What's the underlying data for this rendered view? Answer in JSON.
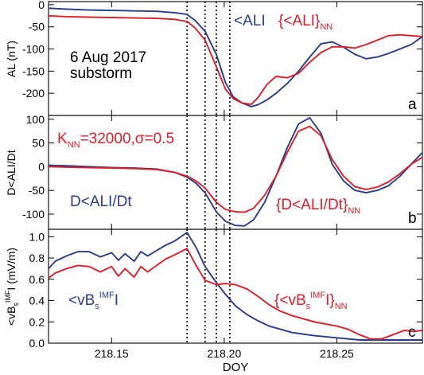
{
  "colors": {
    "observed": "#283c8c",
    "predicted": "#dc1e28",
    "axes": "#000000"
  },
  "xlabel": "DOY",
  "vlines": [
    218.1835,
    218.1915,
    218.1965,
    218.2025
  ],
  "chart_data": [
    {
      "type": "line",
      "panel_label": "a",
      "ylabel": "AL (nT)",
      "xlim": [
        218.122,
        218.288
      ],
      "ylim": [
        -250,
        7
      ],
      "yticks": [
        -200,
        -150,
        -100,
        -50,
        0
      ],
      "xticks": [
        218.15,
        218.2,
        218.25
      ],
      "xticklabels": [
        "",
        "",
        ""
      ],
      "annotations": [
        {
          "text": "6 Aug 2017",
          "color": "#000000"
        },
        {
          "text": "substorm",
          "color": "#000000"
        }
      ],
      "legend": [
        {
          "text": "<ALI",
          "sub": "",
          "tail": "",
          "color": "#283c8c"
        },
        {
          "text": "{<ALI}",
          "sub": "NN",
          "tail": "",
          "color": "#dc1e28"
        }
      ],
      "series": [
        {
          "color": "#283c8c",
          "x": [
            218.122,
            218.13,
            218.14,
            218.15,
            218.16,
            218.17,
            218.178,
            218.1835,
            218.187,
            218.1915,
            218.1965,
            218.2005,
            218.204,
            218.208,
            218.212,
            218.215,
            218.219,
            218.223,
            218.228,
            218.233,
            218.238,
            218.243,
            218.248,
            218.253,
            218.258,
            218.263,
            218.268,
            218.273,
            218.278,
            218.283,
            218.288
          ],
          "y": [
            -8,
            -10,
            -12,
            -13,
            -14,
            -15,
            -18,
            -22,
            -35,
            -60,
            -112,
            -175,
            -208,
            -222,
            -230,
            -226,
            -215,
            -200,
            -178,
            -150,
            -118,
            -88,
            -84,
            -96,
            -112,
            -122,
            -118,
            -110,
            -100,
            -90,
            -72
          ]
        },
        {
          "color": "#dc1e28",
          "x": [
            218.122,
            218.13,
            218.14,
            218.15,
            218.16,
            218.17,
            218.178,
            218.1835,
            218.187,
            218.1915,
            218.1965,
            218.2005,
            218.204,
            218.208,
            218.212,
            218.215,
            218.219,
            218.223,
            218.228,
            218.233,
            218.238,
            218.243,
            218.248,
            218.253,
            218.258,
            218.263,
            218.268,
            218.273,
            218.278,
            218.283,
            218.288
          ],
          "y": [
            -25,
            -27,
            -28,
            -29,
            -30,
            -31,
            -33,
            -38,
            -52,
            -80,
            -140,
            -190,
            -212,
            -222,
            -225,
            -210,
            -180,
            -162,
            -165,
            -155,
            -130,
            -108,
            -95,
            -95,
            -98,
            -90,
            -80,
            -70,
            -68,
            -70,
            -72
          ]
        }
      ]
    },
    {
      "type": "line",
      "panel_label": "b",
      "ylabel": "D<ALI/Dt",
      "xlim": [
        218.122,
        218.288
      ],
      "ylim": [
        -132,
        108
      ],
      "yticks": [
        -100,
        -50,
        0,
        50,
        100
      ],
      "xticks": [
        218.15,
        218.2,
        218.25
      ],
      "xticklabels": [
        "",
        "",
        ""
      ],
      "annotations": [
        {
          "text": "K",
          "sub": "NN",
          "tail": "=32000,σ=0.5",
          "color": "#dc1e28"
        }
      ],
      "legend": [
        {
          "text": "D<ALI/Dt",
          "sub": "",
          "tail": "",
          "color": "#283c8c"
        },
        {
          "text": "{D<ALI/Dt}",
          "sub": "NN",
          "tail": "",
          "color": "#dc1e28"
        }
      ],
      "series": [
        {
          "color": "#283c8c",
          "x": [
            218.122,
            218.13,
            218.14,
            218.15,
            218.16,
            218.17,
            218.178,
            218.1835,
            218.1875,
            218.1915,
            218.1965,
            218.2005,
            218.205,
            218.209,
            218.213,
            218.218,
            218.223,
            218.228,
            218.233,
            218.238,
            218.243,
            218.248,
            218.253,
            218.258,
            218.263,
            218.268,
            218.273,
            218.278,
            218.283,
            218.288
          ],
          "y": [
            3,
            2,
            0,
            -2,
            -3,
            -5,
            -12,
            -22,
            -35,
            -55,
            -95,
            -115,
            -124,
            -125,
            -112,
            -75,
            -20,
            40,
            90,
            103,
            70,
            5,
            -30,
            -50,
            -55,
            -50,
            -40,
            -20,
            5,
            30
          ]
        },
        {
          "color": "#dc1e28",
          "x": [
            218.122,
            218.13,
            218.14,
            218.15,
            218.16,
            218.17,
            218.178,
            218.1835,
            218.1875,
            218.1915,
            218.1965,
            218.2005,
            218.205,
            218.209,
            218.213,
            218.218,
            218.223,
            218.228,
            218.233,
            218.238,
            218.243,
            218.248,
            218.253,
            218.258,
            218.263,
            218.268,
            218.273,
            218.278,
            218.283,
            218.288
          ],
          "y": [
            0,
            -1,
            -2,
            -3,
            -4,
            -6,
            -12,
            -20,
            -30,
            -45,
            -75,
            -90,
            -95,
            -96,
            -88,
            -60,
            -20,
            30,
            75,
            85,
            65,
            15,
            -20,
            -42,
            -48,
            -43,
            -32,
            -15,
            5,
            20
          ]
        }
      ]
    },
    {
      "type": "line",
      "panel_label": "c",
      "ylabel": "<vB",
      "ylabel_parts": {
        "sub": "s",
        "sup": "IMF",
        "tail": "I (mV/m)"
      },
      "xlim": [
        218.122,
        218.288
      ],
      "ylim": [
        0,
        1.07
      ],
      "yticks": [
        0.0,
        0.2,
        0.4,
        0.6,
        0.8,
        1.0
      ],
      "yticklabels": [
        "0.0",
        "0.2",
        "0.4",
        "0.6",
        "0.8",
        "1.0"
      ],
      "xticks": [
        218.15,
        218.2,
        218.25
      ],
      "xticklabels": [
        "218.15",
        "218.20",
        "218.25"
      ],
      "annotations": [],
      "legend": [
        {
          "text": "<vB",
          "sub": "s",
          "sup": "IMF",
          "tail": "I",
          "color": "#283c8c"
        },
        {
          "text": "{<vB",
          "sub": "s",
          "sup": "IMF",
          "tail": "I}",
          "tail_sub": "NN",
          "color": "#dc1e28"
        }
      ],
      "series": [
        {
          "color": "#283c8c",
          "x": [
            218.122,
            218.125,
            218.13,
            218.135,
            218.14,
            218.145,
            218.15,
            218.153,
            218.156,
            218.16,
            218.163,
            218.166,
            218.17,
            218.174,
            218.178,
            218.1835,
            218.1875,
            218.1915,
            218.1965,
            218.2005,
            218.205,
            218.21,
            218.215,
            218.22,
            218.225,
            218.23,
            218.24,
            218.25,
            218.26,
            218.27,
            218.28,
            218.288
          ],
          "y": [
            0.7,
            0.77,
            0.82,
            0.86,
            0.86,
            0.81,
            0.85,
            0.78,
            0.84,
            0.77,
            0.86,
            0.82,
            0.87,
            0.92,
            0.96,
            1.04,
            0.9,
            0.72,
            0.57,
            0.46,
            0.35,
            0.27,
            0.21,
            0.16,
            0.13,
            0.1,
            0.07,
            0.05,
            0.03,
            0.03,
            0.03,
            0.03
          ]
        },
        {
          "color": "#dc1e28",
          "x": [
            218.122,
            218.125,
            218.13,
            218.135,
            218.14,
            218.145,
            218.15,
            218.153,
            218.156,
            218.16,
            218.163,
            218.166,
            218.17,
            218.174,
            218.178,
            218.1835,
            218.1875,
            218.1915,
            218.1965,
            218.2005,
            218.205,
            218.21,
            218.215,
            218.22,
            218.225,
            218.23,
            218.235,
            218.24,
            218.245,
            218.25,
            218.255,
            218.26,
            218.265,
            218.27,
            218.275,
            218.28,
            218.284,
            218.288
          ],
          "y": [
            0.61,
            0.66,
            0.7,
            0.73,
            0.72,
            0.67,
            0.72,
            0.63,
            0.7,
            0.62,
            0.72,
            0.67,
            0.73,
            0.79,
            0.83,
            0.89,
            0.73,
            0.59,
            0.55,
            0.56,
            0.55,
            0.51,
            0.44,
            0.36,
            0.3,
            0.26,
            0.23,
            0.2,
            0.18,
            0.16,
            0.13,
            0.08,
            0.04,
            0.04,
            0.08,
            0.12,
            0.11,
            0.12
          ]
        }
      ]
    }
  ]
}
